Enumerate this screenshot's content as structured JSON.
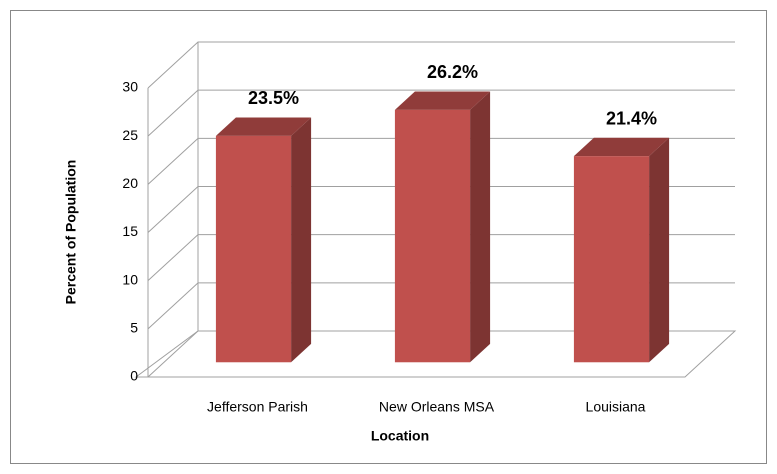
{
  "chart_data": {
    "type": "bar3d",
    "categories": [
      "Jefferson Parish",
      "New Orleans MSA",
      "Louisiana"
    ],
    "values": [
      23.5,
      26.2,
      21.4
    ],
    "value_labels": [
      "23.5%",
      "26.2%",
      "21.4%"
    ],
    "color": "#c0504d",
    "x_label": "Location",
    "y_label": "Percent of Population",
    "ylim": [
      0,
      30
    ],
    "yticks": [
      0,
      5,
      10,
      15,
      20,
      25,
      30
    ],
    "grid": true
  }
}
